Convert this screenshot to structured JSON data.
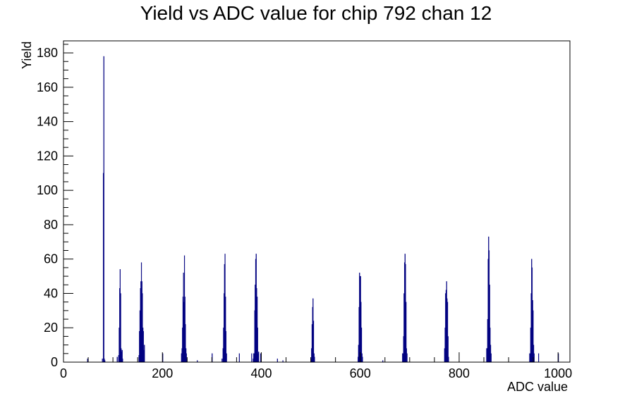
{
  "chart_data": {
    "type": "bar",
    "title": "Yield vs ADC value for chip 792 chan 12",
    "xlabel": "ADC value",
    "ylabel": "Yield",
    "xlim": [
      0,
      1024
    ],
    "ylim": [
      0,
      187
    ],
    "xticks": [
      0,
      200,
      400,
      600,
      800,
      1000
    ],
    "yticks": [
      0,
      20,
      40,
      60,
      80,
      100,
      120,
      140,
      160,
      180
    ],
    "grid": false,
    "legend": "none",
    "colors": {
      "series": "#000080",
      "frame": "#000000",
      "background": "#ffffff"
    },
    "series": [
      {
        "bins": [
          [
            48,
            2
          ],
          [
            78,
            2
          ],
          [
            80,
            110
          ],
          [
            81,
            178
          ],
          [
            82,
            2
          ],
          [
            83,
            1
          ],
          [
            108,
            3
          ],
          [
            111,
            4
          ],
          [
            112,
            20
          ],
          [
            113,
            43
          ],
          [
            114,
            54
          ],
          [
            115,
            40
          ],
          [
            116,
            8
          ],
          [
            117,
            6
          ],
          [
            118,
            7
          ],
          [
            119,
            2
          ],
          [
            152,
            4
          ],
          [
            153,
            18
          ],
          [
            154,
            30
          ],
          [
            155,
            43
          ],
          [
            156,
            47
          ],
          [
            157,
            58
          ],
          [
            158,
            47
          ],
          [
            159,
            40
          ],
          [
            160,
            20
          ],
          [
            161,
            18
          ],
          [
            162,
            7
          ],
          [
            163,
            10
          ],
          [
            200,
            5
          ],
          [
            238,
            5
          ],
          [
            239,
            8
          ],
          [
            240,
            20
          ],
          [
            241,
            38
          ],
          [
            242,
            52
          ],
          [
            243,
            35
          ],
          [
            244,
            62
          ],
          [
            245,
            38
          ],
          [
            246,
            22
          ],
          [
            247,
            8
          ],
          [
            248,
            5
          ],
          [
            249,
            2
          ],
          [
            270,
            1
          ],
          [
            300,
            5
          ],
          [
            320,
            2
          ],
          [
            322,
            8
          ],
          [
            323,
            20
          ],
          [
            324,
            40
          ],
          [
            325,
            57
          ],
          [
            326,
            63
          ],
          [
            327,
            38
          ],
          [
            328,
            18
          ],
          [
            329,
            5
          ],
          [
            355,
            5
          ],
          [
            380,
            5
          ],
          [
            383,
            2
          ],
          [
            384,
            5
          ],
          [
            385,
            5
          ],
          [
            386,
            30
          ],
          [
            387,
            45
          ],
          [
            388,
            60
          ],
          [
            389,
            63
          ],
          [
            390,
            43
          ],
          [
            391,
            38
          ],
          [
            392,
            20
          ],
          [
            393,
            5
          ],
          [
            394,
            6
          ],
          [
            398,
            5
          ],
          [
            432,
            2
          ],
          [
            443,
            1
          ],
          [
            500,
            2
          ],
          [
            501,
            8
          ],
          [
            502,
            22
          ],
          [
            503,
            32
          ],
          [
            504,
            37
          ],
          [
            505,
            24
          ],
          [
            506,
            5
          ],
          [
            507,
            3
          ],
          [
            595,
            3
          ],
          [
            596,
            10
          ],
          [
            597,
            32
          ],
          [
            598,
            52
          ],
          [
            599,
            50
          ],
          [
            600,
            50
          ],
          [
            601,
            35
          ],
          [
            602,
            20
          ],
          [
            603,
            5
          ],
          [
            604,
            3
          ],
          [
            645,
            1
          ],
          [
            685,
            5
          ],
          [
            686,
            5
          ],
          [
            687,
            15
          ],
          [
            688,
            40
          ],
          [
            689,
            58
          ],
          [
            690,
            63
          ],
          [
            691,
            57
          ],
          [
            692,
            35
          ],
          [
            693,
            8
          ],
          [
            694,
            5
          ],
          [
            770,
            8
          ],
          [
            771,
            20
          ],
          [
            772,
            40
          ],
          [
            773,
            42
          ],
          [
            774,
            47
          ],
          [
            775,
            37
          ],
          [
            776,
            35
          ],
          [
            777,
            15
          ],
          [
            778,
            3
          ],
          [
            855,
            8
          ],
          [
            856,
            8
          ],
          [
            857,
            25
          ],
          [
            858,
            60
          ],
          [
            859,
            73
          ],
          [
            860,
            65
          ],
          [
            861,
            45
          ],
          [
            862,
            20
          ],
          [
            863,
            10
          ],
          [
            864,
            5
          ],
          [
            942,
            5
          ],
          [
            943,
            5
          ],
          [
            944,
            20
          ],
          [
            945,
            40
          ],
          [
            946,
            60
          ],
          [
            947,
            55
          ],
          [
            948,
            36
          ],
          [
            949,
            30
          ],
          [
            950,
            10
          ],
          [
            951,
            5
          ],
          [
            960,
            5
          ],
          [
            1000,
            5
          ]
        ]
      }
    ]
  }
}
